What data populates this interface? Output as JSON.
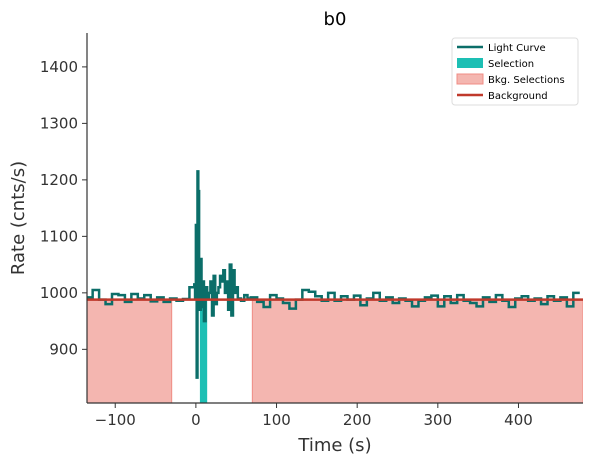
{
  "chart_data": {
    "type": "line",
    "title": "b0",
    "xlabel": "Time (s)",
    "ylabel": "Rate (cnts/s)",
    "xlim": [
      -135,
      480
    ],
    "ylim": [
      805,
      1460
    ],
    "xticks": [
      -100,
      0,
      100,
      200,
      300,
      400
    ],
    "xtick_labels": [
      "−100",
      "0",
      "100",
      "200",
      "300",
      "400"
    ],
    "yticks": [
      900,
      1000,
      1100,
      1200,
      1300,
      1400
    ],
    "ytick_labels": [
      "900",
      "1000",
      "1100",
      "1200",
      "1300",
      "1400"
    ],
    "grid": false,
    "legend": {
      "placement": "top-right",
      "entries": [
        {
          "label": "Light Curve",
          "kind": "line",
          "color": "#0b6e69"
        },
        {
          "label": "Selection",
          "kind": "patch",
          "color": "#1dbfb4"
        },
        {
          "label": "Bkg. Selections",
          "kind": "patch",
          "color": "#f4b6b0"
        },
        {
          "label": "Background",
          "kind": "line",
          "color": "#c0392b"
        }
      ]
    },
    "colors": {
      "light_curve": "#0b6e69",
      "selection": "#1dbfb4",
      "bkg_selection_fill": "#f4b6b0",
      "bkg_selection_edge": "#f08c84",
      "background": "#c0392b"
    },
    "background_level": 988,
    "bkg_selections": [
      [
        -135,
        -30
      ],
      [
        70,
        480
      ]
    ],
    "selection": [
      5,
      14
    ],
    "series": [
      {
        "name": "Light Curve",
        "step_x": [
          -135,
          -128,
          -120,
          -112,
          -104,
          -96,
          -88,
          -80,
          -72,
          -64,
          -56,
          -48,
          -40,
          -32,
          -24,
          -16,
          -8,
          -2,
          -1,
          0,
          1,
          2,
          3,
          4,
          5,
          6,
          7,
          8,
          9,
          10,
          12,
          14,
          16,
          18,
          20,
          22,
          24,
          26,
          28,
          30,
          32,
          34,
          36,
          38,
          40,
          42,
          44,
          46,
          48,
          50,
          52,
          56,
          60,
          64,
          68,
          76,
          84,
          92,
          100,
          108,
          116,
          124,
          132,
          140,
          148,
          156,
          164,
          172,
          180,
          188,
          196,
          204,
          212,
          220,
          228,
          236,
          244,
          252,
          260,
          268,
          276,
          284,
          292,
          300,
          308,
          316,
          324,
          332,
          340,
          348,
          356,
          364,
          372,
          380,
          388,
          396,
          404,
          412,
          420,
          428,
          436,
          444,
          452,
          460,
          468,
          476
        ],
        "step_y": [
          992,
          1005,
          988,
          980,
          998,
          996,
          984,
          998,
          990,
          996,
          985,
          992,
          984,
          990,
          986,
          989,
          1010,
          1015,
          990,
          1120,
          850,
          1215,
          1180,
          1040,
          970,
          1060,
          1005,
          975,
          1020,
          950,
          1010,
          990,
          1000,
          1020,
          960,
          1030,
          980,
          1000,
          1010,
          1030,
          1020,
          1040,
          1000,
          1020,
          970,
          1050,
          960,
          1040,
          1000,
          1010,
          990,
          986,
          996,
          990,
          992,
          984,
          975,
          996,
          990,
          982,
          972,
          988,
          1005,
          1002,
          994,
          986,
          1000,
          986,
          994,
          988,
          995,
          978,
          990,
          1000,
          986,
          992,
          982,
          990,
          986,
          976,
          986,
          992,
          995,
          976,
          994,
          982,
          996,
          986,
          982,
          976,
          992,
          984,
          996,
          986,
          975,
          990,
          994,
          986,
          990,
          980,
          994,
          986,
          992,
          976,
          1000
        ]
      }
    ]
  }
}
